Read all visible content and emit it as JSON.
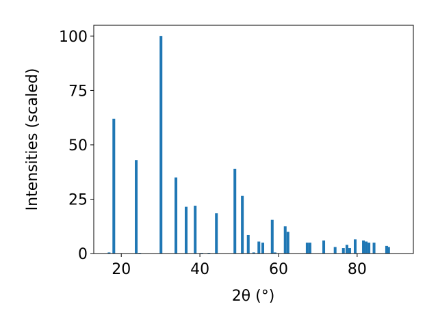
{
  "chart_data": {
    "type": "bar",
    "xlabel": "2θ (°)",
    "ylabel": "Intensities (scaled)",
    "color": "#1f77b4",
    "bar_width": 0.7,
    "x": [
      16.9,
      18.1,
      23.8,
      24.7,
      30.1,
      33.9,
      36.5,
      38.8,
      40.5,
      42.3,
      44.2,
      48.9,
      50.8,
      52.3,
      53.7,
      55.0,
      56.0,
      58.4,
      59.1,
      61.7,
      62.4,
      67.3,
      68.0,
      71.5,
      74.4,
      76.5,
      77.4,
      78.1,
      79.5,
      81.6,
      82.3,
      83.0,
      84.3,
      87.5,
      88.0
    ],
    "values": [
      0.5,
      62,
      43,
      0.3,
      100,
      35,
      21.5,
      22,
      0.3,
      0.3,
      18.5,
      39,
      26.5,
      8.5,
      0.5,
      5.5,
      5,
      15.5,
      0.5,
      12.5,
      10,
      5,
      5,
      6,
      3,
      2.5,
      4,
      2.5,
      6.5,
      6,
      5.5,
      5,
      5,
      3.5,
      3
    ],
    "xlim": [
      13.0,
      94.3
    ],
    "ylim": [
      0,
      105
    ],
    "xticks": [
      20,
      40,
      60,
      80
    ],
    "yticks": [
      0,
      25,
      50,
      75,
      100
    ]
  }
}
